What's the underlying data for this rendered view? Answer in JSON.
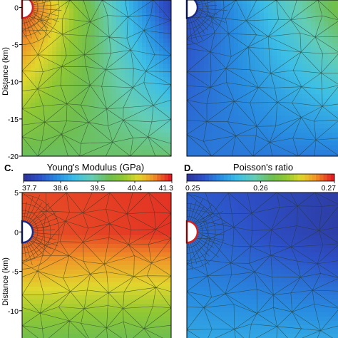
{
  "chart_data": [
    {
      "type": "heatmap",
      "panel": "",
      "ylabel": "Distance (km)",
      "ylim": [
        -20,
        1
      ],
      "yticks": [
        "0",
        "-5",
        "-10",
        "-15",
        "-20"
      ],
      "ytick_values": [
        0,
        -5,
        -10,
        -15,
        -20
      ],
      "colormap": "parula-jet",
      "hole": {
        "x": 0,
        "y": 0
      },
      "field": {
        "top_left": 0.95,
        "top_right": 0.02,
        "bottom": 0.55
      }
    },
    {
      "type": "heatmap",
      "panel": "",
      "ylim": [
        -20,
        1
      ],
      "colormap": "parula-jet",
      "hole": {
        "x": 0,
        "y": 0
      },
      "field": {
        "top_left": 0.1,
        "top_right": 0.62,
        "bottom": 0.18
      }
    },
    {
      "type": "heatmap",
      "panel": "C.",
      "title": "Young's Modulus (GPa)",
      "colorbar": {
        "min": 37.7,
        "max": 41.3,
        "ticks": [
          "37.7",
          "38.6",
          "39.5",
          "40.4",
          "41.3"
        ]
      },
      "ylabel": "Distance (km)",
      "ylim": [
        -14,
        5
      ],
      "yticks": [
        "5",
        "0",
        "-5",
        "-10"
      ],
      "ytick_values": [
        5,
        0,
        -5,
        -10
      ],
      "colormap": "parula-jet",
      "hole": {
        "x": 0,
        "y": 0
      },
      "field": {
        "top_left": 0.95,
        "top_right": 0.98,
        "bottom": 0.55
      }
    },
    {
      "type": "heatmap",
      "panel": "D.",
      "title": "Poisson's ratio",
      "colorbar": {
        "min": 0.25,
        "max": 0.27,
        "ticks": [
          "0.25",
          "0.26",
          "0.27"
        ]
      },
      "ylim": [
        -14,
        5
      ],
      "colormap": "parula-jet",
      "hole": {
        "x": 0,
        "y": 0
      },
      "field": {
        "top_left": 0.15,
        "top_right": 0.02,
        "bottom": 0.3
      }
    }
  ]
}
